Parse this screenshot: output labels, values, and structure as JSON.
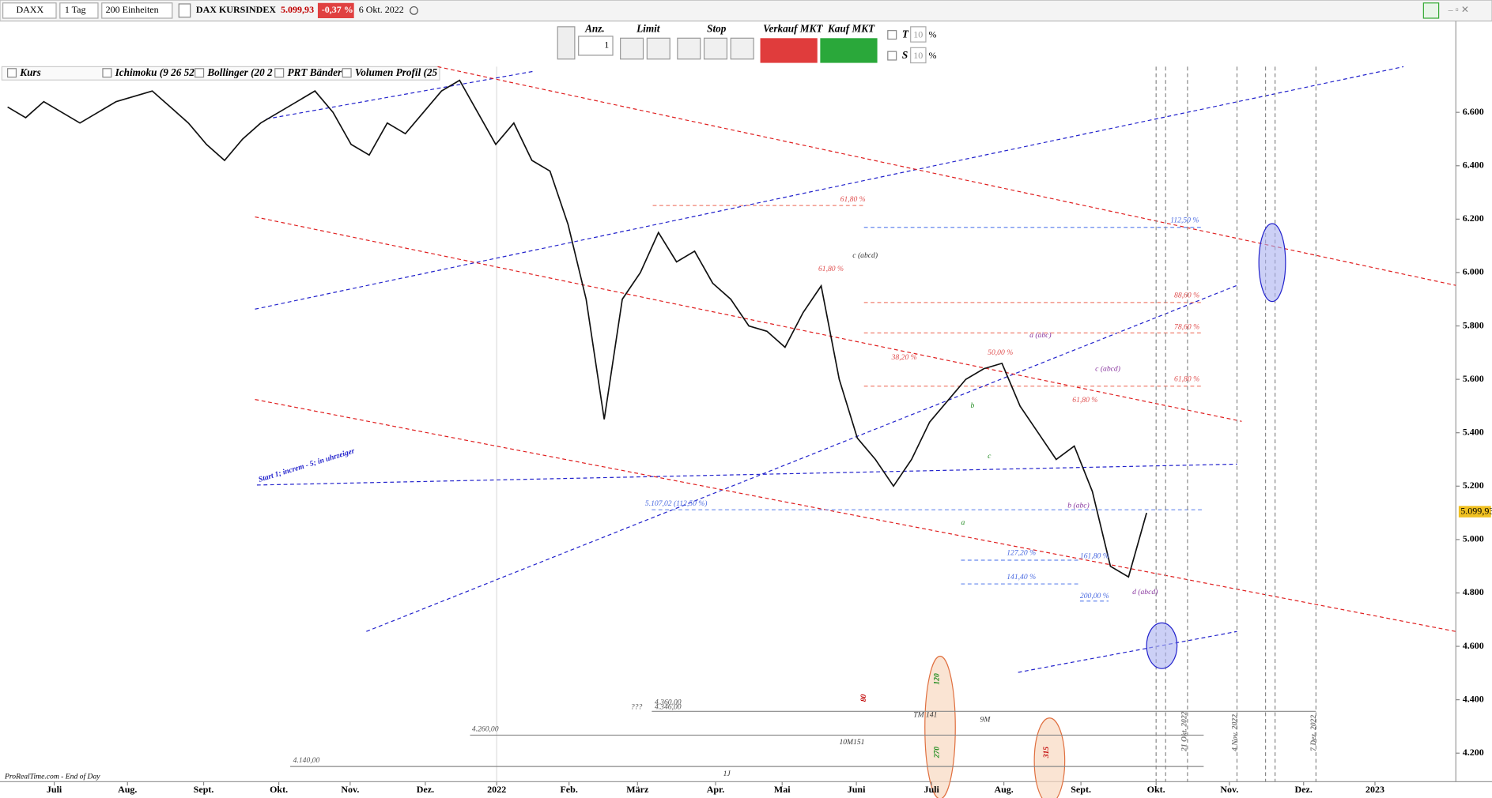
{
  "toolbar": {
    "symbol": "DAXX",
    "interval": "1 Tag",
    "units": "200 Einheiten",
    "instrument": "DAX KURSINDEX",
    "price": "5.099,93",
    "change": "-0,37 %",
    "date": "6 Okt. 2022"
  },
  "order_panel": {
    "qty_label": "Anz.",
    "qty": "1",
    "limit": "Limit",
    "stop": "Stop",
    "sell": "Verkauf MKT",
    "buy": "Kauf MKT",
    "t": "T",
    "s": "S",
    "t_val": "10",
    "s_val": "10",
    "pct": "%"
  },
  "indicators": [
    "Kurs",
    "Ichimoku (9 26 52",
    "Bollinger (20 2",
    "PRT Bänder",
    "Volumen Profil (25"
  ],
  "chart_data": {
    "type": "line",
    "series": [
      {
        "name": "Kurs",
        "color": "#111111",
        "values": [
          6620,
          6580,
          6640,
          6600,
          6560,
          6600,
          6640,
          6660,
          6680,
          6620,
          6560,
          6480,
          6420,
          6500,
          6560,
          6600,
          6640,
          6680,
          6600,
          6480,
          6440,
          6560,
          6520,
          6600,
          6680,
          6720,
          6600,
          6480,
          6560,
          6420,
          6380,
          6180,
          5900,
          5450,
          5900,
          6000,
          6150,
          6040,
          6080,
          5960,
          5900,
          5800,
          5780,
          5720,
          5850,
          5950,
          5600,
          5380,
          5300,
          5200,
          5300,
          5440,
          5520,
          5600,
          5640,
          5660,
          5500,
          5400,
          5300,
          5350,
          5180,
          4900,
          4860,
          5100
        ]
      }
    ],
    "ylim": [
      4093,
      6771
    ],
    "yticks": [
      {
        "value": 6600,
        "label": "6.600"
      },
      {
        "value": 6400,
        "label": "6.400"
      },
      {
        "value": 6200,
        "label": "6.200"
      },
      {
        "value": 6000,
        "label": "6.000"
      },
      {
        "value": 5800,
        "label": "5.800"
      },
      {
        "value": 5600,
        "label": "5.600"
      },
      {
        "value": 5400,
        "label": "5.400"
      },
      {
        "value": 5200,
        "label": "5.200"
      },
      {
        "value": 5000,
        "label": "5.000"
      },
      {
        "value": 4800,
        "label": "4.800"
      },
      {
        "value": 4600,
        "label": "4.600"
      },
      {
        "value": 4400,
        "label": "4.400"
      },
      {
        "value": 4200,
        "label": "4.200"
      }
    ],
    "months": [
      "Juli",
      "Aug.",
      "Sept.",
      "Okt.",
      "Nov.",
      "Dez.",
      "2022",
      "Feb.",
      "März",
      "Apr.",
      "Mai",
      "Juni",
      "Juli",
      "Aug.",
      "Sept.",
      "Okt.",
      "Nov.",
      "Dez.",
      "2023"
    ],
    "annotations": [
      "61,80 %",
      "112,50 %",
      "61,80 %",
      "c (abcd)",
      "88,60 %",
      "78,60 %",
      "a (abc)",
      "50,00 %",
      "38,20 %",
      "c (abcd)",
      "61,80 %",
      "61,80 %",
      "b",
      "c",
      "a",
      "b (abc)",
      "5.107,02 (112,50 %)",
      "127,20 %",
      "161,80 %",
      "141,40 %",
      "200,00 %",
      "d (abcd)",
      "Start 1; increm - 5; in uhrzeiger",
      "???",
      "4.360,00",
      "4.346,00",
      "TM 141",
      "9M",
      "10M151",
      "4.260,00",
      "4.140,00",
      "1J",
      "80",
      "120",
      "270",
      "315",
      "21 Okt. 2022",
      "4 Nov. 2022",
      "7 Dez. 2022"
    ]
  },
  "footer": "ProRealTime.com - End of Day"
}
